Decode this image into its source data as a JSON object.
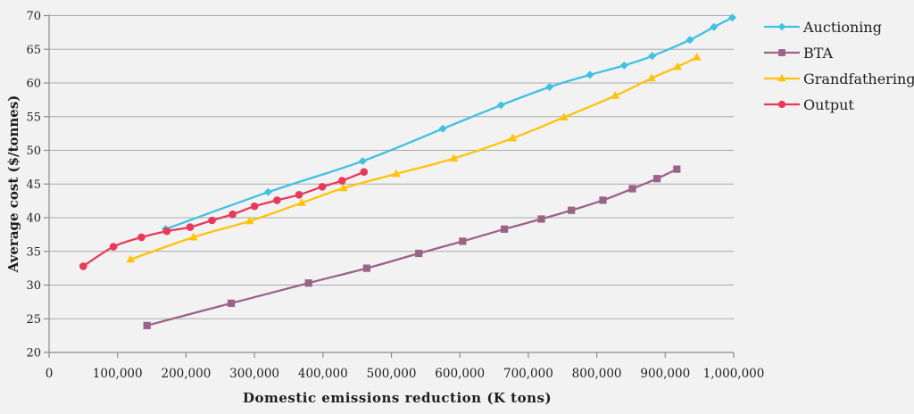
{
  "page": {
    "background_color": "#F2F2F2",
    "gridline_color": "#A9A9A9",
    "axis_line_color": "#8C8C8C",
    "text_color": "#1F1F1F"
  },
  "chart_data": {
    "type": "line",
    "title": "",
    "xlabel": "Domestic emissions reduction (K tons)",
    "ylabel": "Average cost ($/tonnes)",
    "xlim": [
      0,
      1000000
    ],
    "ylim": [
      20,
      70
    ],
    "grid": "horizontal",
    "line_style": "smooth",
    "legend_position": "right",
    "x_ticks": [
      {
        "value": 0,
        "label": "0"
      },
      {
        "value": 100000,
        "label": "100,000"
      },
      {
        "value": 200000,
        "label": "200,000"
      },
      {
        "value": 300000,
        "label": "300,000"
      },
      {
        "value": 400000,
        "label": "400,000"
      },
      {
        "value": 500000,
        "label": "500,000"
      },
      {
        "value": 600000,
        "label": "600,000"
      },
      {
        "value": 700000,
        "label": "700,000"
      },
      {
        "value": 800000,
        "label": "800,000"
      },
      {
        "value": 900000,
        "label": "900,000"
      },
      {
        "value": 1000000,
        "label": "1,000,000"
      }
    ],
    "y_ticks": [
      {
        "value": 20,
        "label": "20"
      },
      {
        "value": 25,
        "label": "25"
      },
      {
        "value": 30,
        "label": "30"
      },
      {
        "value": 35,
        "label": "35"
      },
      {
        "value": 40,
        "label": "40"
      },
      {
        "value": 45,
        "label": "45"
      },
      {
        "value": 50,
        "label": "50"
      },
      {
        "value": 55,
        "label": "55"
      },
      {
        "value": 60,
        "label": "60"
      },
      {
        "value": 65,
        "label": "65"
      },
      {
        "value": 70,
        "label": "70"
      }
    ],
    "series": [
      {
        "name": "Auctioning",
        "color": "#3FC1E1",
        "marker": "diamond",
        "points": [
          [
            170000,
            38.3
          ],
          [
            320000,
            43.8
          ],
          [
            458000,
            48.4
          ],
          [
            575000,
            53.2
          ],
          [
            660000,
            56.7
          ],
          [
            731000,
            59.4
          ],
          [
            790000,
            61.2
          ],
          [
            840000,
            62.6
          ],
          [
            881000,
            64.0
          ],
          [
            936000,
            66.4
          ],
          [
            971000,
            68.3
          ],
          [
            998000,
            69.7
          ]
        ]
      },
      {
        "name": "BTA",
        "color": "#9A6388",
        "marker": "square",
        "points": [
          [
            143000,
            24.0
          ],
          [
            266000,
            27.3
          ],
          [
            379000,
            30.3
          ],
          [
            464000,
            32.5
          ],
          [
            540000,
            34.7
          ],
          [
            604000,
            36.5
          ],
          [
            665000,
            38.3
          ],
          [
            719000,
            39.8
          ],
          [
            763000,
            41.1
          ],
          [
            809000,
            42.6
          ],
          [
            852000,
            44.3
          ],
          [
            888000,
            45.8
          ],
          [
            917000,
            47.2
          ]
        ]
      },
      {
        "name": "Grandfathering",
        "color": "#FFC30B",
        "marker": "triangle",
        "points": [
          [
            119000,
            33.8
          ],
          [
            211000,
            37.1
          ],
          [
            293000,
            39.5
          ],
          [
            369000,
            42.2
          ],
          [
            430000,
            44.4
          ],
          [
            507000,
            46.5
          ],
          [
            591000,
            48.8
          ],
          [
            677000,
            51.8
          ],
          [
            752000,
            54.9
          ],
          [
            827000,
            58.1
          ],
          [
            880000,
            60.7
          ],
          [
            918000,
            62.4
          ],
          [
            946000,
            63.8
          ]
        ]
      },
      {
        "name": "Output",
        "color": "#E8395A",
        "marker": "circle",
        "points": [
          [
            50000,
            32.8
          ],
          [
            94000,
            35.7
          ],
          [
            135000,
            37.1
          ],
          [
            172000,
            38.0
          ],
          [
            206000,
            38.6
          ],
          [
            238000,
            39.6
          ],
          [
            268000,
            40.5
          ],
          [
            300000,
            41.7
          ],
          [
            333000,
            42.6
          ],
          [
            365000,
            43.4
          ],
          [
            399000,
            44.6
          ],
          [
            428000,
            45.5
          ],
          [
            460000,
            46.8
          ]
        ]
      }
    ]
  }
}
